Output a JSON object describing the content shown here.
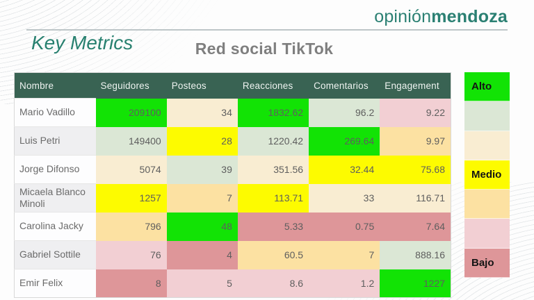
{
  "brand": {
    "logo_regular": "opinión",
    "logo_bold": "mendoza"
  },
  "header": {
    "kicker": "Key Metrics",
    "title": "Red social TikTok"
  },
  "palette": {
    "green": "#12e305",
    "sage": "#dbe7d5",
    "cream": "#f9edd2",
    "yellow": "#fdfb00",
    "orange": "#fce1a2",
    "pink": "#f2cfd3",
    "salmon": "#de9699",
    "header_bg": "#396353",
    "accent_teal": "#27806f",
    "title_gray": "#7f7f7f"
  },
  "chart_data": {
    "type": "table",
    "title": "Red social TikTok",
    "columns": [
      "Nombre",
      "Seguidores",
      "Posteos",
      "Reacciones",
      "Comentarios",
      "Engagement"
    ],
    "rows": [
      {
        "name": "Mario Vadillo",
        "values": [
          "209100",
          "34",
          "1832.62",
          "96.2",
          "9.22"
        ],
        "colors": [
          "green",
          "cream",
          "green",
          "sage",
          "pink"
        ]
      },
      {
        "name": "Luis Petri",
        "values": [
          "149400",
          "28",
          "1220.42",
          "269.64",
          "9.97"
        ],
        "colors": [
          "sage",
          "yellow",
          "sage",
          "green",
          "orange"
        ]
      },
      {
        "name": "Jorge Difonso",
        "values": [
          "5074",
          "39",
          "351.56",
          "32.44",
          "75.68"
        ],
        "colors": [
          "cream",
          "sage",
          "cream",
          "yellow",
          "yellow"
        ]
      },
      {
        "name": "Micaela Blanco Minoli",
        "values": [
          "1257",
          "7",
          "113.71",
          "33",
          "116.71"
        ],
        "colors": [
          "yellow",
          "orange",
          "yellow",
          "cream",
          "cream"
        ]
      },
      {
        "name": "Carolina Jacky",
        "values": [
          "796",
          "48",
          "5.33",
          "0.75",
          "7.64"
        ],
        "colors": [
          "orange",
          "green",
          "salmon",
          "salmon",
          "salmon"
        ]
      },
      {
        "name": "Gabriel Sottile",
        "values": [
          "76",
          "4",
          "60.5",
          "7",
          "888.16"
        ],
        "colors": [
          "pink",
          "salmon",
          "orange",
          "orange",
          "sage"
        ]
      },
      {
        "name": "Emir Felix",
        "values": [
          "8",
          "5",
          "8.6",
          "1.2",
          "1227"
        ],
        "colors": [
          "salmon",
          "pink",
          "pink",
          "pink",
          "green"
        ]
      }
    ],
    "legend_blocks": [
      {
        "color": "green",
        "label": "Alto"
      },
      {
        "color": "sage",
        "label": ""
      },
      {
        "color": "cream",
        "label": ""
      },
      {
        "color": "yellow",
        "label": "Medio"
      },
      {
        "color": "orange",
        "label": ""
      },
      {
        "color": "pink",
        "label": ""
      },
      {
        "color": "salmon",
        "label": "Bajo"
      }
    ]
  }
}
